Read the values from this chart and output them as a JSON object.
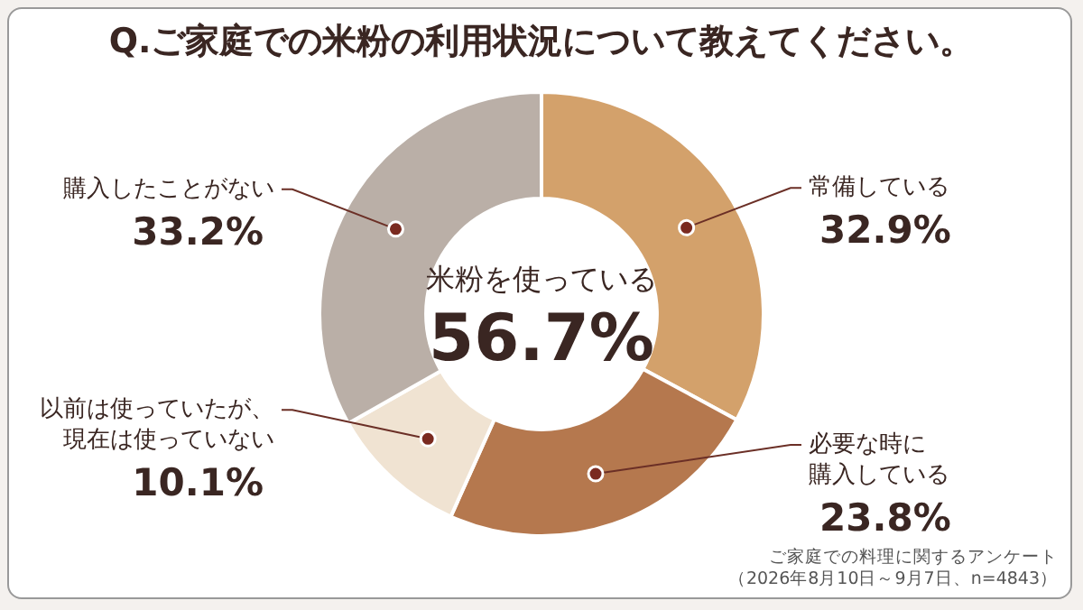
{
  "chart_data": {
    "type": "donut",
    "title": "Q.ご家庭での米粉の利用状況について教えてください。",
    "categories": [
      "常備している",
      "必要な時に購入している",
      "以前は使っていたが、現在は使っていない",
      "購入したことがない"
    ],
    "values": [
      32.9,
      23.8,
      10.1,
      33.2
    ],
    "colors": [
      "#d3a16b",
      "#b5784e",
      "#f0e3d2",
      "#baafa7"
    ],
    "value_labels": [
      "32.9%",
      "23.8%",
      "10.1%",
      "33.2%"
    ],
    "annotations": [
      "米粉を使っている",
      "56.7%",
      "ご家庭での料理に関するアンケート",
      "（2026年8月10日～9月7日、n=4843）"
    ],
    "legend": false
  }
}
